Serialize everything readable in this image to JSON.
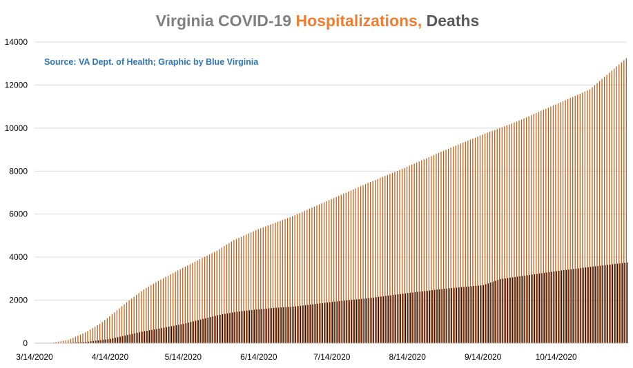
{
  "chart_data": {
    "type": "bar",
    "title_parts": [
      {
        "text": "Virginia COVID-19 ",
        "color": "#7f7f7f"
      },
      {
        "text": "Hospitalizations, ",
        "color": "#ed7d31"
      },
      {
        "text": "Deaths",
        "color": "#595959"
      }
    ],
    "source": "Source: VA Dept. of Health; Graphic by Blue Virginia",
    "source_color": "#2e75b6",
    "ylim": [
      0,
      14000
    ],
    "y_ticks": [
      "0",
      "2000",
      "4000",
      "6000",
      "8000",
      "10000",
      "12000",
      "14000"
    ],
    "x_range": [
      "2020-03-14",
      "2020-11-12"
    ],
    "x_ticks": [
      "3/14/2020",
      "4/14/2020",
      "5/14/2020",
      "6/14/2020",
      "7/14/2020",
      "8/14/2020",
      "9/14/2020",
      "10/14/2020"
    ],
    "grid": true,
    "series": [
      {
        "color": "#c55a11",
        "keypoints": [
          [
            "2020-03-14",
            0
          ],
          [
            "2020-03-21",
            20
          ],
          [
            "2020-03-28",
            150
          ],
          [
            "2020-04-04",
            500
          ],
          [
            "2020-04-10",
            900
          ],
          [
            "2020-04-14",
            1250
          ],
          [
            "2020-04-21",
            1900
          ],
          [
            "2020-04-28",
            2500
          ],
          [
            "2020-05-04",
            2900
          ],
          [
            "2020-05-14",
            3500
          ],
          [
            "2020-05-21",
            3900
          ],
          [
            "2020-05-28",
            4300
          ],
          [
            "2020-06-04",
            4800
          ],
          [
            "2020-06-14",
            5300
          ],
          [
            "2020-06-21",
            5600
          ],
          [
            "2020-06-28",
            5900
          ],
          [
            "2020-07-04",
            6200
          ],
          [
            "2020-07-14",
            6700
          ],
          [
            "2020-07-28",
            7400
          ],
          [
            "2020-08-14",
            8200
          ],
          [
            "2020-08-28",
            8900
          ],
          [
            "2020-09-14",
            9700
          ],
          [
            "2020-09-28",
            10300
          ],
          [
            "2020-10-14",
            11100
          ],
          [
            "2020-10-28",
            11800
          ],
          [
            "2020-11-12",
            13250
          ]
        ]
      },
      {
        "color": "#1a0f0a",
        "keypoints": [
          [
            "2020-03-14",
            0
          ],
          [
            "2020-03-28",
            20
          ],
          [
            "2020-04-04",
            60
          ],
          [
            "2020-04-14",
            200
          ],
          [
            "2020-04-21",
            380
          ],
          [
            "2020-04-28",
            560
          ],
          [
            "2020-05-04",
            680
          ],
          [
            "2020-05-14",
            900
          ],
          [
            "2020-05-21",
            1100
          ],
          [
            "2020-05-28",
            1300
          ],
          [
            "2020-06-04",
            1450
          ],
          [
            "2020-06-14",
            1580
          ],
          [
            "2020-06-21",
            1650
          ],
          [
            "2020-06-28",
            1700
          ],
          [
            "2020-07-04",
            1780
          ],
          [
            "2020-07-14",
            1920
          ],
          [
            "2020-07-28",
            2080
          ],
          [
            "2020-08-14",
            2330
          ],
          [
            "2020-08-28",
            2520
          ],
          [
            "2020-09-14",
            2700
          ],
          [
            "2020-09-21",
            2980
          ],
          [
            "2020-10-14",
            3350
          ],
          [
            "2020-10-28",
            3550
          ],
          [
            "2020-11-12",
            3750
          ]
        ]
      }
    ]
  }
}
